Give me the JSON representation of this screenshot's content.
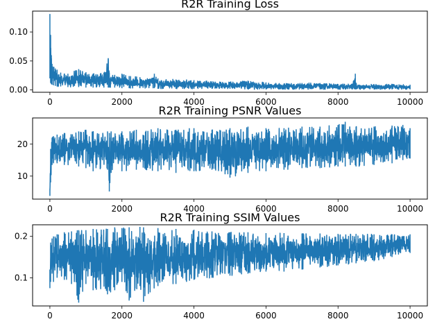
{
  "chart_data": [
    {
      "type": "line",
      "title": "R2R Training Loss",
      "xlabel": "",
      "ylabel": "",
      "xlim": [
        -480,
        10480
      ],
      "ylim": [
        -0.004,
        0.136
      ],
      "x_ticks": [
        0,
        2000,
        4000,
        6000,
        8000,
        10000
      ],
      "y_ticks": [
        0.0,
        0.05,
        0.1
      ],
      "x_tick_labels": [
        "0",
        "2000",
        "4000",
        "6000",
        "8000",
        "10000"
      ],
      "y_tick_labels": [
        "0.00",
        "0.05",
        "0.10"
      ],
      "color": "#1f77b4",
      "grid": false,
      "series": [
        {
          "x": [
            0,
            20,
            40,
            60,
            100,
            150,
            200,
            300,
            500,
            800,
            1000,
            1200,
            1500,
            1620,
            1650,
            1800,
            2000,
            2200,
            2500,
            2900,
            3000,
            3500,
            4000,
            4500,
            5000,
            5500,
            6000,
            6500,
            7000,
            7500,
            8000,
            8400,
            8480,
            8500,
            8600,
            9000,
            9500,
            10000
          ],
          "min": [
            0.02,
            0.012,
            0.01,
            0.009,
            0.008,
            0.007,
            0.006,
            0.006,
            0.005,
            0.005,
            0.004,
            0.004,
            0.004,
            0.004,
            0.004,
            0.004,
            0.003,
            0.003,
            0.003,
            0.003,
            0.002,
            0.002,
            0.002,
            0.002,
            0.002,
            0.001,
            0.001,
            0.001,
            0.001,
            0.001,
            0.001,
            0.001,
            0.001,
            0.001,
            0.001,
            0.001,
            0.001,
            0.001
          ],
          "max": [
            0.131,
            0.095,
            0.06,
            0.045,
            0.04,
            0.037,
            0.035,
            0.03,
            0.028,
            0.036,
            0.03,
            0.028,
            0.03,
            0.055,
            0.03,
            0.026,
            0.028,
            0.024,
            0.022,
            0.028,
            0.02,
            0.018,
            0.017,
            0.015,
            0.014,
            0.016,
            0.013,
            0.011,
            0.012,
            0.012,
            0.01,
            0.011,
            0.028,
            0.012,
            0.009,
            0.01,
            0.01,
            0.009
          ]
        }
      ]
    },
    {
      "type": "line",
      "title": "R2R Training PSNR Values",
      "xlabel": "",
      "ylabel": "",
      "xlim": [
        -480,
        10480
      ],
      "ylim": [
        2.8,
        28.2
      ],
      "x_ticks": [
        0,
        2000,
        4000,
        6000,
        8000,
        10000
      ],
      "y_ticks": [
        10,
        20
      ],
      "x_tick_labels": [
        "0",
        "2000",
        "4000",
        "6000",
        "8000",
        "10000"
      ],
      "y_tick_labels": [
        "10",
        "20"
      ],
      "color": "#1f77b4",
      "grid": false,
      "series": [
        {
          "x": [
            0,
            20,
            60,
            100,
            200,
            400,
            800,
            1000,
            1200,
            1600,
            1650,
            1700,
            2000,
            2400,
            3000,
            3500,
            4000,
            4500,
            5000,
            5500,
            6000,
            6500,
            7000,
            7500,
            8000,
            8200,
            8500,
            9000,
            9500,
            9800,
            10000
          ],
          "min": [
            3.8,
            8.0,
            13.5,
            14.0,
            14.0,
            13.5,
            13.0,
            12.5,
            11.5,
            12.0,
            5.2,
            11.0,
            11.5,
            12.0,
            11.5,
            11.0,
            11.5,
            12.0,
            9.5,
            11.0,
            11.5,
            12.0,
            12.5,
            12.5,
            13.0,
            13.0,
            13.0,
            13.5,
            14.0,
            15.0,
            15.5
          ],
          "max": [
            6.0,
            18.5,
            22.0,
            22.5,
            23.0,
            23.5,
            24.0,
            24.5,
            24.0,
            24.0,
            23.5,
            24.0,
            24.0,
            24.5,
            25.0,
            24.5,
            25.0,
            24.5,
            25.0,
            25.5,
            25.0,
            25.0,
            25.5,
            25.5,
            26.0,
            27.0,
            25.5,
            25.5,
            25.8,
            26.0,
            25.0
          ]
        }
      ]
    },
    {
      "type": "line",
      "title": "R2R Training SSIM Values",
      "xlabel": "",
      "ylabel": "",
      "xlim": [
        -480,
        10480
      ],
      "ylim": [
        0.032,
        0.228
      ],
      "x_ticks": [
        0,
        2000,
        4000,
        6000,
        8000,
        10000
      ],
      "y_ticks": [
        0.1,
        0.2
      ],
      "x_tick_labels": [
        "0",
        "2000",
        "4000",
        "6000",
        "8000",
        "10000"
      ],
      "y_tick_labels": [
        "0.1",
        "0.2"
      ],
      "color": "#1f77b4",
      "grid": false,
      "series": [
        {
          "x": [
            0,
            20,
            60,
            100,
            200,
            400,
            600,
            800,
            1000,
            1200,
            1600,
            1800,
            2000,
            2200,
            2500,
            2600,
            3000,
            3500,
            4000,
            4500,
            5000,
            5500,
            6000,
            6500,
            7000,
            7500,
            8000,
            8500,
            9000,
            9500,
            10000
          ],
          "min": [
            0.075,
            0.09,
            0.11,
            0.09,
            0.1,
            0.095,
            0.085,
            0.04,
            0.085,
            0.07,
            0.06,
            0.07,
            0.09,
            0.045,
            0.08,
            0.042,
            0.08,
            0.085,
            0.095,
            0.1,
            0.105,
            0.11,
            0.115,
            0.115,
            0.12,
            0.125,
            0.13,
            0.135,
            0.14,
            0.15,
            0.16
          ],
          "max": [
            0.12,
            0.185,
            0.195,
            0.2,
            0.205,
            0.21,
            0.212,
            0.215,
            0.215,
            0.218,
            0.218,
            0.222,
            0.22,
            0.222,
            0.223,
            0.222,
            0.22,
            0.218,
            0.216,
            0.212,
            0.21,
            0.21,
            0.208,
            0.208,
            0.207,
            0.207,
            0.206,
            0.206,
            0.205,
            0.205,
            0.205
          ]
        }
      ]
    }
  ]
}
